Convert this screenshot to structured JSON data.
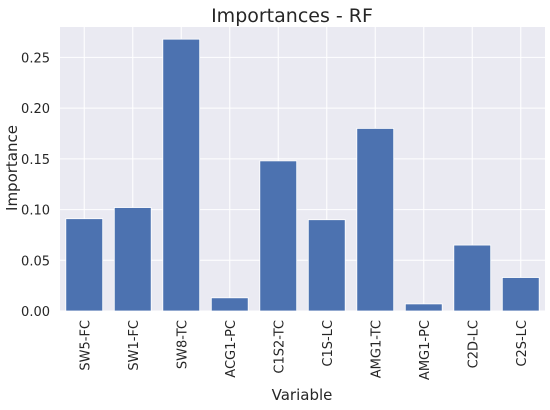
{
  "chart_data": {
    "type": "bar",
    "title": "Importances - RF",
    "xlabel": "Variable",
    "ylabel": "Importance",
    "categories": [
      "SW5-FC",
      "SW1-FC",
      "SW8-TC",
      "ACG1-PC",
      "C1S2-TC",
      "C1S-LC",
      "AMG1-TC",
      "AMG1-PC",
      "C2D-LC",
      "C2S-LC"
    ],
    "values": [
      0.091,
      0.102,
      0.268,
      0.013,
      0.148,
      0.09,
      0.18,
      0.007,
      0.065,
      0.033
    ],
    "ylim": [
      0,
      0.28
    ],
    "yticks": [
      0.0,
      0.05,
      0.1,
      0.15,
      0.2,
      0.25
    ],
    "ytick_labels": [
      "0.00",
      "0.05",
      "0.10",
      "0.15",
      "0.20",
      "0.25"
    ],
    "grid": true,
    "bar_color": "#4c72b0",
    "plot_background": "#eaeaf2",
    "grid_color": "#ffffff"
  }
}
